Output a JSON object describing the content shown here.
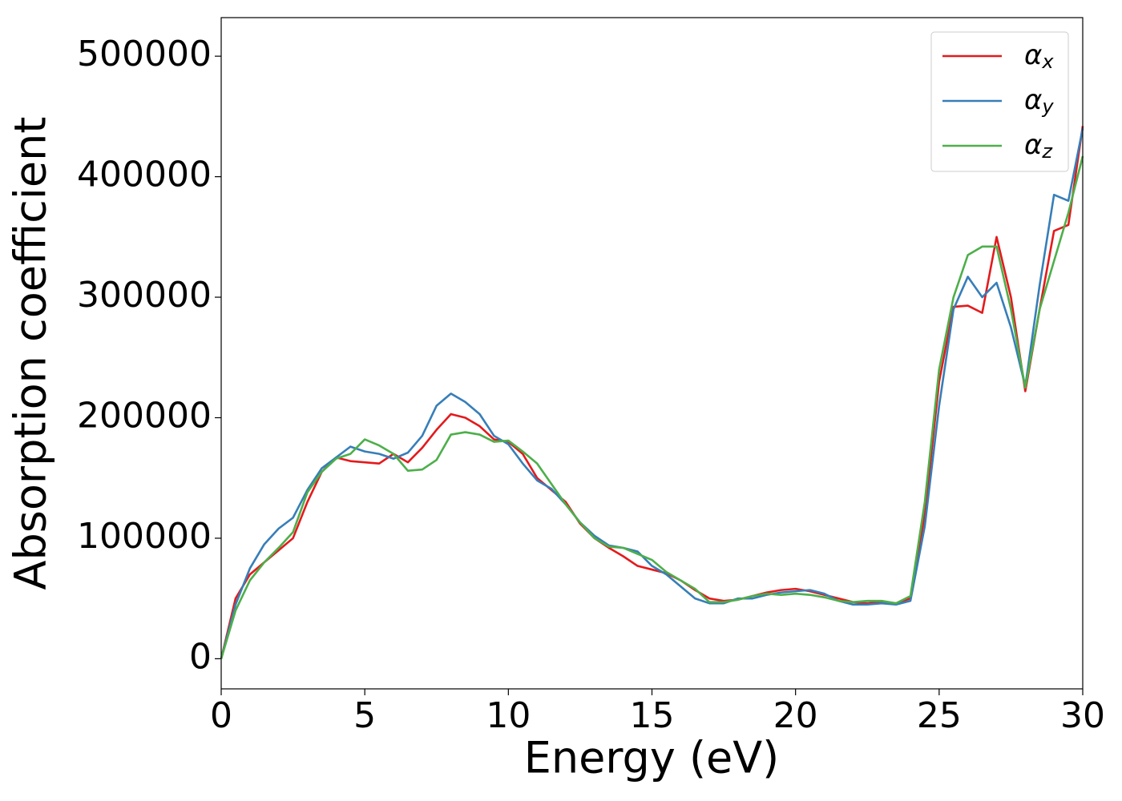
{
  "chart_data": {
    "type": "line",
    "xlabel": "Energy (eV)",
    "ylabel": "Absorption coefficient",
    "x": [
      0,
      0.5,
      1,
      1.5,
      2,
      2.5,
      3,
      3.5,
      4,
      4.5,
      5,
      5.5,
      6,
      6.5,
      7,
      7.5,
      8,
      8.5,
      9,
      9.5,
      10,
      10.5,
      11,
      11.5,
      12,
      12.5,
      13,
      13.5,
      14,
      14.5,
      15,
      15.5,
      16,
      16.5,
      17,
      17.5,
      18,
      18.5,
      19,
      19.5,
      20,
      20.5,
      21,
      21.5,
      22,
      22.5,
      23,
      23.5,
      24,
      24.5,
      25,
      25.5,
      26,
      26.5,
      27,
      27.5,
      28,
      28.5,
      29,
      29.5,
      30
    ],
    "series": [
      {
        "name": "αx",
        "color": "#e41a1c",
        "values": [
          0,
          50000,
          70000,
          80000,
          90000,
          100000,
          130000,
          155000,
          167000,
          164000,
          163000,
          162000,
          170000,
          163000,
          175000,
          190000,
          203000,
          200000,
          193000,
          182000,
          180000,
          170000,
          150000,
          140000,
          130000,
          112000,
          100000,
          92000,
          85000,
          77000,
          74000,
          71000,
          65000,
          57000,
          50000,
          48000,
          49000,
          52000,
          55000,
          57000,
          58000,
          56000,
          53000,
          50000,
          47000,
          46000,
          47000,
          46000,
          50000,
          120000,
          230000,
          292000,
          293000,
          287000,
          350000,
          300000,
          222000,
          290000,
          355000,
          360000,
          442000
        ]
      },
      {
        "name": "αy",
        "color": "#377eb8",
        "values": [
          0,
          45000,
          75000,
          95000,
          108000,
          117000,
          140000,
          158000,
          167000,
          176000,
          172000,
          170000,
          166000,
          171000,
          185000,
          210000,
          220000,
          213000,
          203000,
          185000,
          178000,
          162000,
          148000,
          141000,
          128000,
          113000,
          102000,
          94000,
          92000,
          89000,
          77000,
          70000,
          60000,
          50000,
          46000,
          46000,
          50000,
          50000,
          53000,
          55000,
          56000,
          57000,
          54000,
          48000,
          45000,
          45000,
          46000,
          45000,
          48000,
          110000,
          210000,
          290000,
          317000,
          300000,
          312000,
          275000,
          226000,
          310000,
          385000,
          380000,
          440000
        ]
      },
      {
        "name": "αz",
        "color": "#4daf4a",
        "values": [
          0,
          40000,
          65000,
          80000,
          92000,
          105000,
          138000,
          155000,
          166000,
          170000,
          182000,
          177000,
          170000,
          156000,
          157000,
          165000,
          186000,
          188000,
          186000,
          180000,
          181000,
          172000,
          162000,
          145000,
          128000,
          113000,
          100000,
          93000,
          92000,
          87000,
          82000,
          72000,
          65000,
          58000,
          47000,
          47000,
          49000,
          52000,
          54000,
          53000,
          54000,
          53000,
          51000,
          48000,
          47000,
          48000,
          48000,
          46000,
          52000,
          130000,
          240000,
          300000,
          335000,
          342000,
          342000,
          290000,
          225000,
          290000,
          330000,
          370000,
          417000
        ]
      }
    ],
    "xlim": [
      0,
      30
    ],
    "xticks": [
      0,
      5,
      10,
      15,
      20,
      25,
      30
    ],
    "ylim": [
      -25000,
      532000
    ],
    "yticks": [
      0,
      100000,
      200000,
      300000,
      400000,
      500000
    ],
    "grid": false,
    "legend": "upper right"
  }
}
